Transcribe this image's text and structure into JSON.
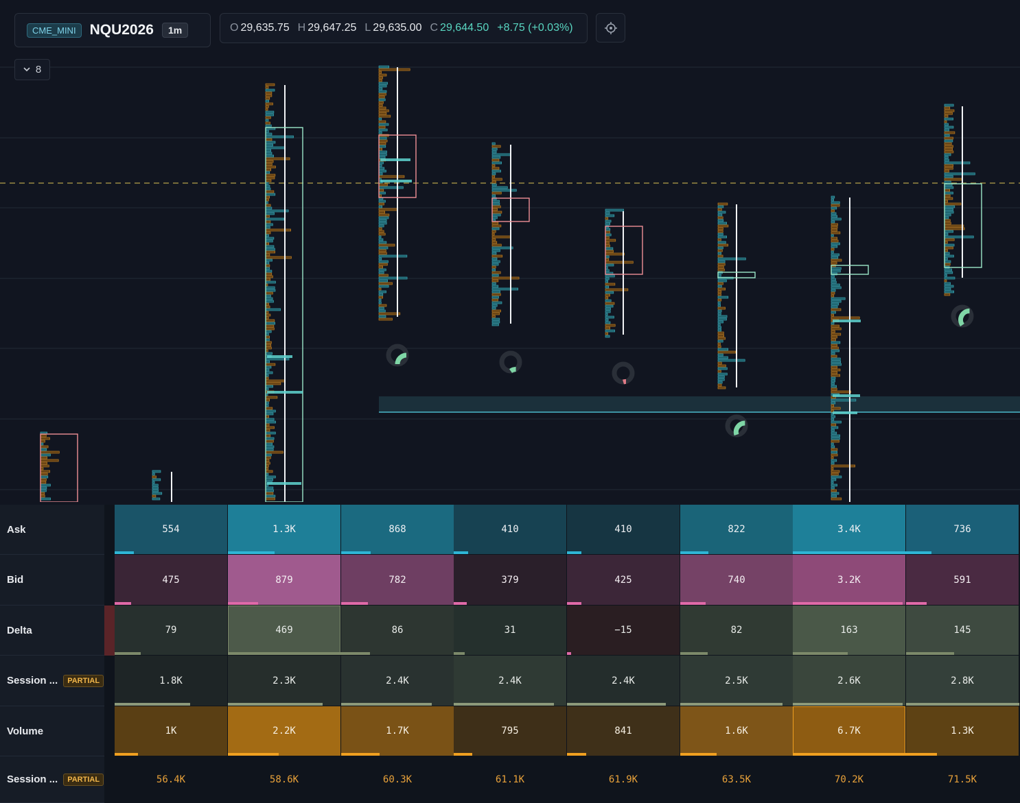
{
  "header": {
    "exchange": "CME_MINI",
    "symbol": "NQU2026",
    "timeframe": "1m",
    "ohlc": {
      "o_label": "O",
      "o": "29,635.75",
      "h_label": "H",
      "h": "29,647.25",
      "l_label": "L",
      "l": "29,635.00",
      "c_label": "C",
      "c": "29,644.50",
      "change": "+8.75 (+0.03%)"
    },
    "target_icon": "crosshair-icon"
  },
  "collapse": {
    "count": "8",
    "icon": "chevron-down-icon"
  },
  "colors": {
    "bull": "#9be8c8",
    "bear": "#ef8f95",
    "ask": "#3aaec4",
    "bid": "#e07ab0",
    "volume": "#e5961e",
    "price_line": "#b7a24a"
  },
  "table": {
    "rows": [
      {
        "label": "Ask",
        "badge": "",
        "values": [
          "554",
          "1.3K",
          "868",
          "410",
          "410",
          "822",
          "3.4K",
          "736"
        ]
      },
      {
        "label": "Bid",
        "badge": "",
        "values": [
          "475",
          "879",
          "782",
          "379",
          "425",
          "740",
          "3.2K",
          "591"
        ]
      },
      {
        "label": "Delta",
        "badge": "",
        "values": [
          "79",
          "469",
          "86",
          "31",
          "−15",
          "82",
          "163",
          "145"
        ]
      },
      {
        "label": "Session ...",
        "badge": "PARTIAL",
        "values": [
          "1.8K",
          "2.3K",
          "2.4K",
          "2.4K",
          "2.4K",
          "2.5K",
          "2.6K",
          "2.8K"
        ]
      },
      {
        "label": "Volume",
        "badge": "",
        "values": [
          "1K",
          "2.2K",
          "1.7K",
          "795",
          "841",
          "1.6K",
          "6.7K",
          "1.3K"
        ]
      },
      {
        "label": "Session ...",
        "badge": "PARTIAL",
        "values": [
          "56.4K",
          "58.6K",
          "60.3K",
          "61.1K",
          "61.9K",
          "63.5K",
          "70.2K",
          "71.5K"
        ]
      }
    ]
  }
}
